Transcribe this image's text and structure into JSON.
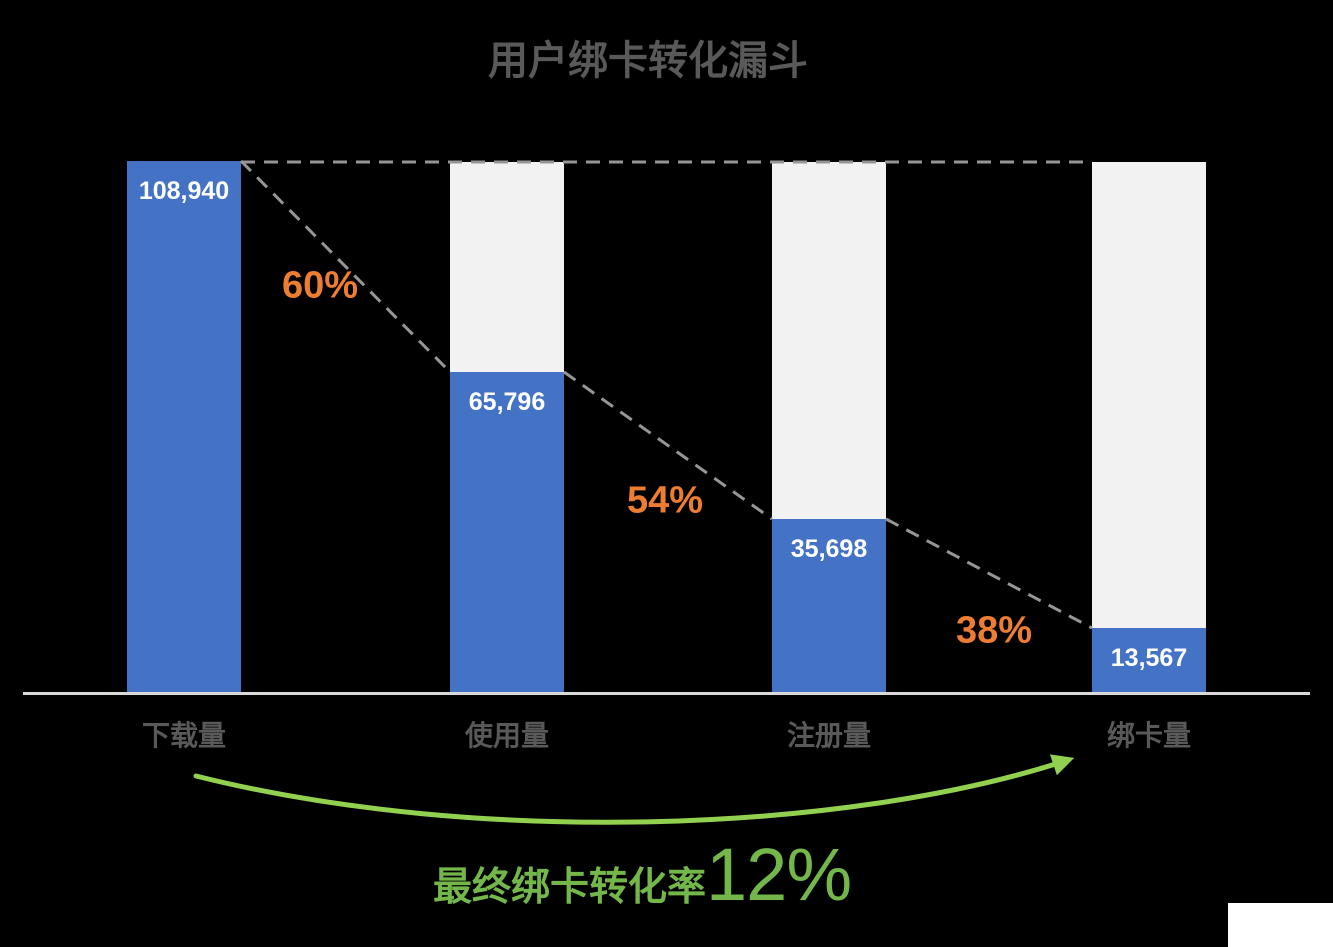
{
  "title": "用户绑卡转化漏斗",
  "colors": {
    "background": "#000000",
    "bar_blue": "#4472C4",
    "bar_track_gray": "#F2F2F2",
    "percent_orange": "#ED7D31",
    "note_green": "#73B649",
    "arrow_green": "#92D050",
    "dashed_gray": "#969696",
    "axis_gray": "#D9D9D9",
    "text_gray": "#595959",
    "value_white": "#FFFFFF"
  },
  "chart_data": {
    "type": "bar",
    "subtype": "funnel-columns",
    "title": "用户绑卡转化漏斗",
    "categories": [
      "下载量",
      "使用量",
      "注册量",
      "绑卡量"
    ],
    "values": [
      108940,
      65796,
      35698,
      13567
    ],
    "value_labels": [
      "108,940",
      "65,796",
      "35,698",
      "13,567"
    ],
    "stage_conversion_labels": [
      "60%",
      "54%",
      "38%"
    ],
    "footer": {
      "label": "最终绑卡转化率",
      "rate": "12%"
    },
    "ylim": [
      0,
      108940
    ],
    "grid": false,
    "legend": false,
    "annotations": "gray tracks show total baseline; dashed lines connect stage tops; green arrow spans first to last stage"
  }
}
